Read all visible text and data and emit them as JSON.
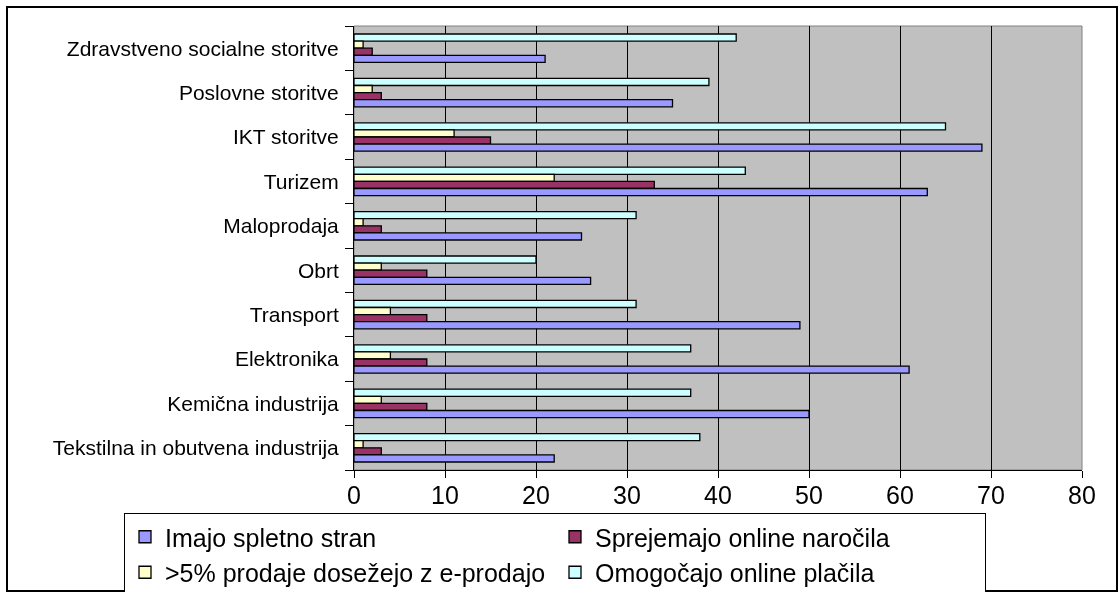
{
  "chart_data": {
    "type": "bar",
    "orientation": "horizontal",
    "categories": [
      "Zdravstveno socialne storitve",
      "Poslovne storitve",
      "IKT storitve",
      "Turizem",
      "Maloprodaja",
      "Obrt",
      "Transport",
      "Elektronika",
      "Kemična industrija",
      "Tekstilna in obutvena industrija"
    ],
    "series": [
      {
        "name": "Imajo spletno stran",
        "color": "#9999ff",
        "values": [
          21,
          35,
          69,
          63,
          25,
          26,
          49,
          61,
          50,
          22
        ]
      },
      {
        "name": "Sprejemajo online naročila",
        "color": "#993366",
        "values": [
          2,
          3,
          15,
          33,
          3,
          8,
          8,
          8,
          8,
          3
        ]
      },
      {
        "name": ">5% prodaje dosežejo z e-prodajo",
        "color": "#ffffcc",
        "values": [
          1,
          2,
          11,
          22,
          1,
          3,
          4,
          4,
          3,
          1
        ]
      },
      {
        "name": "Omogočajo online plačila",
        "color": "#ccffff",
        "values": [
          42,
          39,
          65,
          43,
          31,
          20,
          31,
          37,
          37,
          38
        ]
      }
    ],
    "xlim": [
      0,
      80
    ],
    "xticks": [
      0,
      10,
      20,
      30,
      40,
      50,
      60,
      70,
      80
    ],
    "grid": "x",
    "legend": "bottom"
  }
}
